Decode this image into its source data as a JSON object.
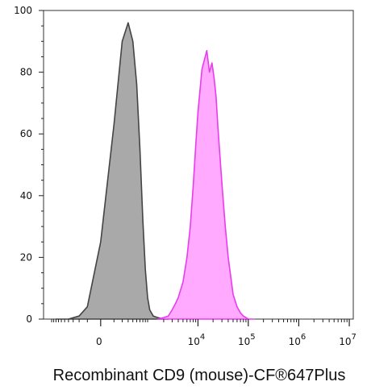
{
  "chart_data": {
    "type": "area",
    "title": "",
    "xlabel": "Recombinant CD9 (mouse)-CF®647Plus",
    "ylabel": "",
    "ylim": [
      0,
      100
    ],
    "x_scale": "biexponential",
    "grid": false,
    "legend": "none",
    "y_ticks": [
      {
        "value": 0,
        "label": "0"
      },
      {
        "value": 20,
        "label": "20"
      },
      {
        "value": 40,
        "label": "40"
      },
      {
        "value": 60,
        "label": "60"
      },
      {
        "value": 80,
        "label": "80"
      },
      {
        "value": 100,
        "label": "100"
      }
    ],
    "x_ticks": [
      {
        "value": 0,
        "base": "0",
        "exp": ""
      },
      {
        "value": 10000,
        "base": "10",
        "exp": "4"
      },
      {
        "value": 100000,
        "base": "10",
        "exp": "5"
      },
      {
        "value": 1000000,
        "base": "10",
        "exp": "6"
      },
      {
        "value": 10000000,
        "base": "10",
        "exp": "7"
      }
    ],
    "series": [
      {
        "color": "#808080",
        "fill": "#a9a9a9",
        "stroke": "#444444",
        "x": [
          -800,
          -400,
          -200,
          -100,
          0,
          100,
          200,
          300,
          400,
          500,
          600,
          700,
          800,
          900,
          1000,
          1200,
          1500,
          2000,
          2500
        ],
        "y": [
          0,
          0,
          1,
          4,
          25,
          63,
          90,
          96,
          90,
          76,
          55,
          32,
          16,
          7,
          3,
          1,
          0.5,
          0,
          0
        ]
      },
      {
        "color": "#e13ce8",
        "fill": "#ffaaff",
        "stroke": "#e83cee",
        "x": [
          1500,
          2000,
          2500,
          3000,
          3500,
          4000,
          5000,
          6000,
          7000,
          8000,
          9000,
          10000,
          12000,
          15000,
          17000,
          19000,
          21000,
          23000,
          25000,
          30000,
          35000,
          40000,
          50000,
          60000,
          70000,
          80000,
          90000,
          100000,
          130000
        ],
        "y": [
          0,
          0.5,
          1,
          3,
          5,
          7,
          12,
          20,
          30,
          43,
          56,
          67,
          81,
          87,
          80,
          83,
          78,
          72,
          62,
          44,
          30,
          20,
          8,
          4,
          2,
          1,
          0.5,
          0,
          0
        ]
      }
    ]
  }
}
